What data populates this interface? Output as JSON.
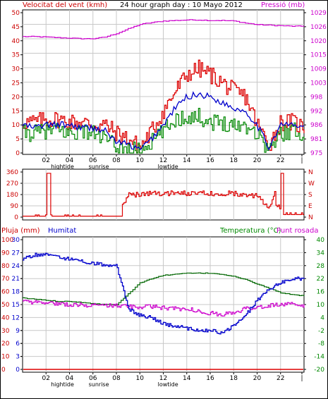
{
  "colors": {
    "wind_avg": "#dd0000",
    "wind_gust_blue": "#0000cc",
    "wind_green": "#008800",
    "pressure": "#cc00cc",
    "direction": "#dd0000",
    "humidity": "#0000cc",
    "temperature": "#006600",
    "dewpoint": "#cc00cc",
    "rain": "#dd0000",
    "frame": "#000000",
    "grid": "#c8c8c8"
  },
  "panel1": {
    "title_left": "Velocitat del vent (kmh)",
    "title_center": "24 hour graph day : 10 Mayo 2012",
    "title_right": "Pressió (mb)",
    "y_left_ticks": [
      "50",
      "45",
      "40",
      "35",
      "30",
      "25",
      "20",
      "15",
      "10",
      "5",
      "0"
    ],
    "y_right_ticks": [
      "1029",
      "1026",
      "1020",
      "1015",
      "1009",
      "1003",
      "998",
      "992",
      "986",
      "981",
      "975"
    ],
    "x_ticks": [
      "02",
      "04",
      "06",
      "08",
      "10",
      "12",
      "14",
      "16",
      "18",
      "20",
      "22",
      "|"
    ],
    "events": [
      "hightide",
      "sunrise",
      "lowtide"
    ]
  },
  "panel2": {
    "y_left_ticks": [
      "360",
      "270",
      "180",
      "90",
      "0"
    ],
    "y_right_ticks": [
      "N",
      "W",
      "S",
      "E",
      "N"
    ]
  },
  "panel3": {
    "title_left1": "Pluja (mm)",
    "title_left2": "Humitat",
    "title_right": "Temperatura (°C)",
    "title_right2": "Punt rosada",
    "y_rain_ticks": [
      "100",
      "90",
      "80",
      "70",
      "60",
      "50",
      "40",
      "30",
      "20",
      "10",
      "0"
    ],
    "y_hum_ticks": [
      "30",
      "27",
      "24",
      "21",
      "18",
      "15",
      "12",
      "9",
      "6",
      "3",
      "0"
    ],
    "y_temp_ticks": [
      "40",
      "34",
      "28",
      "22",
      "16",
      "10",
      "4",
      "-2",
      "-8",
      "-14",
      "-20"
    ],
    "x_ticks": [
      "02",
      "04",
      "06",
      "08",
      "10",
      "12",
      "14",
      "16",
      "18",
      "20",
      "22",
      "|"
    ],
    "events": [
      "hightide",
      "sunrise",
      "lowtide"
    ]
  },
  "chart_data": [
    {
      "type": "line",
      "title": "24 hour graph day : 10 Mayo 2012",
      "ylabel": "Velocitat del vent (kmh)",
      "y2label": "Pressió (mb)",
      "x": [
        0,
        1,
        2,
        3,
        4,
        5,
        6,
        7,
        8,
        9,
        10,
        11,
        12,
        13,
        14,
        15,
        16,
        17,
        18,
        19,
        20,
        21,
        22,
        23,
        24
      ],
      "ylim": [
        0,
        50
      ],
      "y2lim": [
        975,
        1029
      ],
      "series": [
        {
          "axis": "left",
          "values": [
            11,
            11,
            12,
            12,
            11,
            11,
            10,
            10,
            7,
            5,
            2,
            8,
            15,
            22,
            28,
            30,
            28,
            25,
            22,
            20,
            10,
            3,
            11,
            11,
            9
          ]
        },
        {
          "axis": "left",
          "values": [
            10,
            9,
            10,
            10,
            10,
            9,
            9,
            8,
            4,
            3,
            1,
            5,
            10,
            16,
            20,
            21,
            20,
            18,
            16,
            15,
            10,
            2,
            10,
            10,
            9
          ]
        },
        {
          "axis": "left",
          "values": [
            7,
            7,
            8,
            8,
            7,
            8,
            7,
            5,
            2,
            1,
            1,
            4,
            8,
            12,
            13,
            13,
            11,
            11,
            10,
            10,
            7,
            1,
            7,
            8,
            7
          ]
        },
        {
          "axis": "right",
          "values": [
            1019.8,
            1019.8,
            1019.6,
            1019.4,
            1019.2,
            1019.0,
            1019.0,
            1019.6,
            1021.0,
            1022.8,
            1024.5,
            1025.2,
            1025.8,
            1026.0,
            1026.2,
            1026.2,
            1026.0,
            1026.0,
            1025.8,
            1025.0,
            1024.4,
            1024.2,
            1024.0,
            1023.8,
            1023.8
          ]
        }
      ]
    },
    {
      "type": "line",
      "ylim": [
        0,
        360
      ],
      "x": [
        0,
        1,
        2,
        3,
        4,
        5,
        6,
        7,
        8,
        9,
        10,
        11,
        12,
        13,
        14,
        15,
        16,
        17,
        18,
        19,
        20,
        21,
        22,
        23,
        24
      ],
      "series": [
        {
          "values": [
            10,
            10,
            350,
            5,
            5,
            5,
            10,
            10,
            15,
            180,
            180,
            190,
            190,
            190,
            190,
            190,
            190,
            190,
            190,
            180,
            170,
            60,
            350,
            20,
            20
          ]
        }
      ]
    },
    {
      "type": "line",
      "x": [
        0,
        1,
        2,
        3,
        4,
        5,
        6,
        7,
        8,
        9,
        10,
        11,
        12,
        13,
        14,
        15,
        16,
        17,
        18,
        19,
        20,
        21,
        22,
        23,
        24
      ],
      "ylim": [
        0,
        100
      ],
      "y2lim": [
        -20,
        40
      ],
      "series": [
        {
          "axis": "humidity",
          "values": [
            25.5,
            26.5,
            26.5,
            26,
            25.5,
            25,
            24.5,
            24.2,
            24,
            14,
            12.5,
            12,
            10.5,
            10,
            9.5,
            9,
            9,
            8.5,
            10,
            12.5,
            16,
            18.5,
            20,
            21,
            21
          ]
        },
        {
          "axis": "right",
          "values": [
            13,
            12.5,
            12,
            11.5,
            11.5,
            11,
            10.5,
            10,
            10,
            15,
            20,
            22,
            23.5,
            24,
            24.5,
            24.5,
            24.5,
            24,
            23,
            21.5,
            19.5,
            17.5,
            15.5,
            14.5,
            14
          ]
        },
        {
          "axis": "right",
          "values": [
            11.5,
            11,
            11,
            10.5,
            10,
            10,
            9.5,
            9.5,
            9.5,
            9,
            9,
            9,
            8.5,
            8,
            8,
            7,
            6,
            5.5,
            6,
            8,
            9,
            9.5,
            10,
            10,
            9.5
          ]
        },
        {
          "axis": "left",
          "values": [
            0,
            0,
            0,
            0,
            0,
            0,
            0,
            0,
            0,
            0,
            0,
            0,
            0,
            0,
            0,
            0,
            0,
            0,
            0,
            0,
            0,
            0,
            0,
            0,
            0
          ]
        }
      ]
    }
  ]
}
